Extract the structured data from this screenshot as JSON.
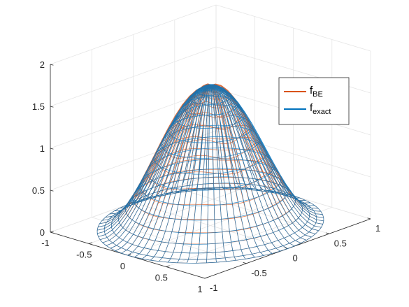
{
  "chart_data": {
    "type": "surface-mesh-3d",
    "title": "",
    "xlabel": "",
    "ylabel": "",
    "zlabel": "",
    "xlim": [
      -1,
      1
    ],
    "ylim": [
      -1,
      1
    ],
    "zlim": [
      0,
      2
    ],
    "x_ticks": [
      "-1",
      "-0.5",
      "0",
      "0.5",
      "1"
    ],
    "y_ticks": [
      "-1",
      "-0.5",
      "0",
      "0.5",
      "1"
    ],
    "z_ticks": [
      "0",
      "0.5",
      "1",
      "1.5",
      "2"
    ],
    "grid": true,
    "legend_position": "top-right",
    "domain": "unit disk",
    "peak_value": 1.67,
    "series": [
      {
        "name": "f",
        "subscript": "BE",
        "color": "#d95319"
      },
      {
        "name": "f",
        "subscript": "exact",
        "color": "#0072bd"
      }
    ]
  }
}
